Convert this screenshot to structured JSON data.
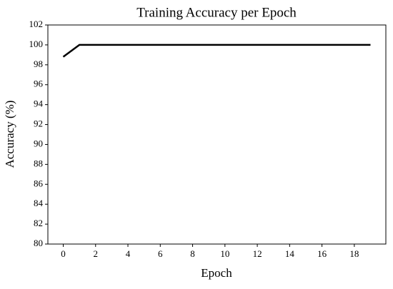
{
  "chart_data": {
    "type": "line",
    "title": "Training Accuracy per Epoch",
    "x_label": "Epoch",
    "y_label": "Accuracy (%)",
    "x": [
      0,
      1,
      2,
      3,
      4,
      5,
      6,
      7,
      8,
      9,
      10,
      11,
      12,
      13,
      14,
      15,
      16,
      17,
      18,
      19
    ],
    "series": [
      {
        "color": "#000000",
        "values": [
          98.8,
          100,
          100,
          100,
          100,
          100,
          100,
          100,
          100,
          100,
          100,
          100,
          100,
          100,
          100,
          100,
          100,
          100,
          100,
          100
        ]
      }
    ],
    "xlim": [
      -0.95,
      19.95
    ],
    "xticks": [
      0,
      2,
      4,
      6,
      8,
      10,
      12,
      14,
      16,
      18
    ],
    "ylim": [
      80,
      102
    ],
    "yticks": [
      80,
      82,
      84,
      86,
      88,
      90,
      92,
      94,
      96,
      98,
      100,
      102
    ],
    "grid": false
  }
}
